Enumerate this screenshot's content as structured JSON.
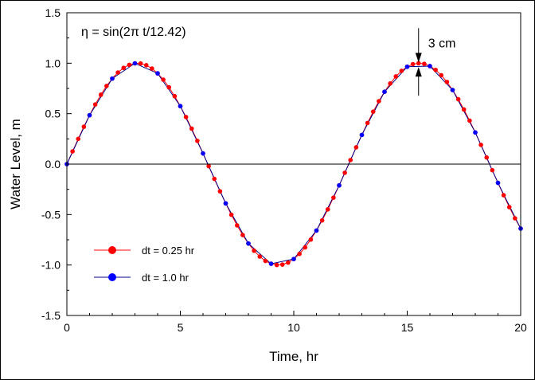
{
  "chart_data": {
    "type": "line",
    "title": "",
    "xlabel": "Time, hr",
    "ylabel": "Water Level, m",
    "xlim": [
      0,
      20
    ],
    "ylim": [
      -1.5,
      1.5
    ],
    "xticks": [
      0,
      5,
      10,
      15,
      20
    ],
    "yticks": [
      1.5,
      1.0,
      0.5,
      0.0,
      -0.5,
      -1.0,
      -1.5
    ],
    "xtick_labels": [
      "0",
      "5",
      "10",
      "15",
      "20"
    ],
    "ytick_labels": [
      "1.5",
      "1.0",
      "0.5",
      "0.0",
      "-0.5",
      "-1.0",
      "-1.5"
    ],
    "zero_line": true,
    "grid": false,
    "legend_position": "bottom-left",
    "annotations": {
      "equation": "η = sin(2π t/12.42)",
      "difference_label": "3 cm",
      "difference_at_x": 15.5
    },
    "series": [
      {
        "name": "dt = 0.25 hr",
        "color": "#ff0000",
        "marker_color": "#ff0000",
        "line_color": "#ff0000",
        "x_start": 0,
        "x_end": 20,
        "dx": 0.25,
        "function": "sin(2*pi*t/12.42)"
      },
      {
        "name": "dt = 1.0 hr",
        "color": "#0000ff",
        "marker_color": "#0000ff",
        "line_color": "#00008b",
        "x_start": 0,
        "x_end": 20,
        "dx": 1.0,
        "function": "sin(2*pi*t/12.42)"
      }
    ]
  }
}
